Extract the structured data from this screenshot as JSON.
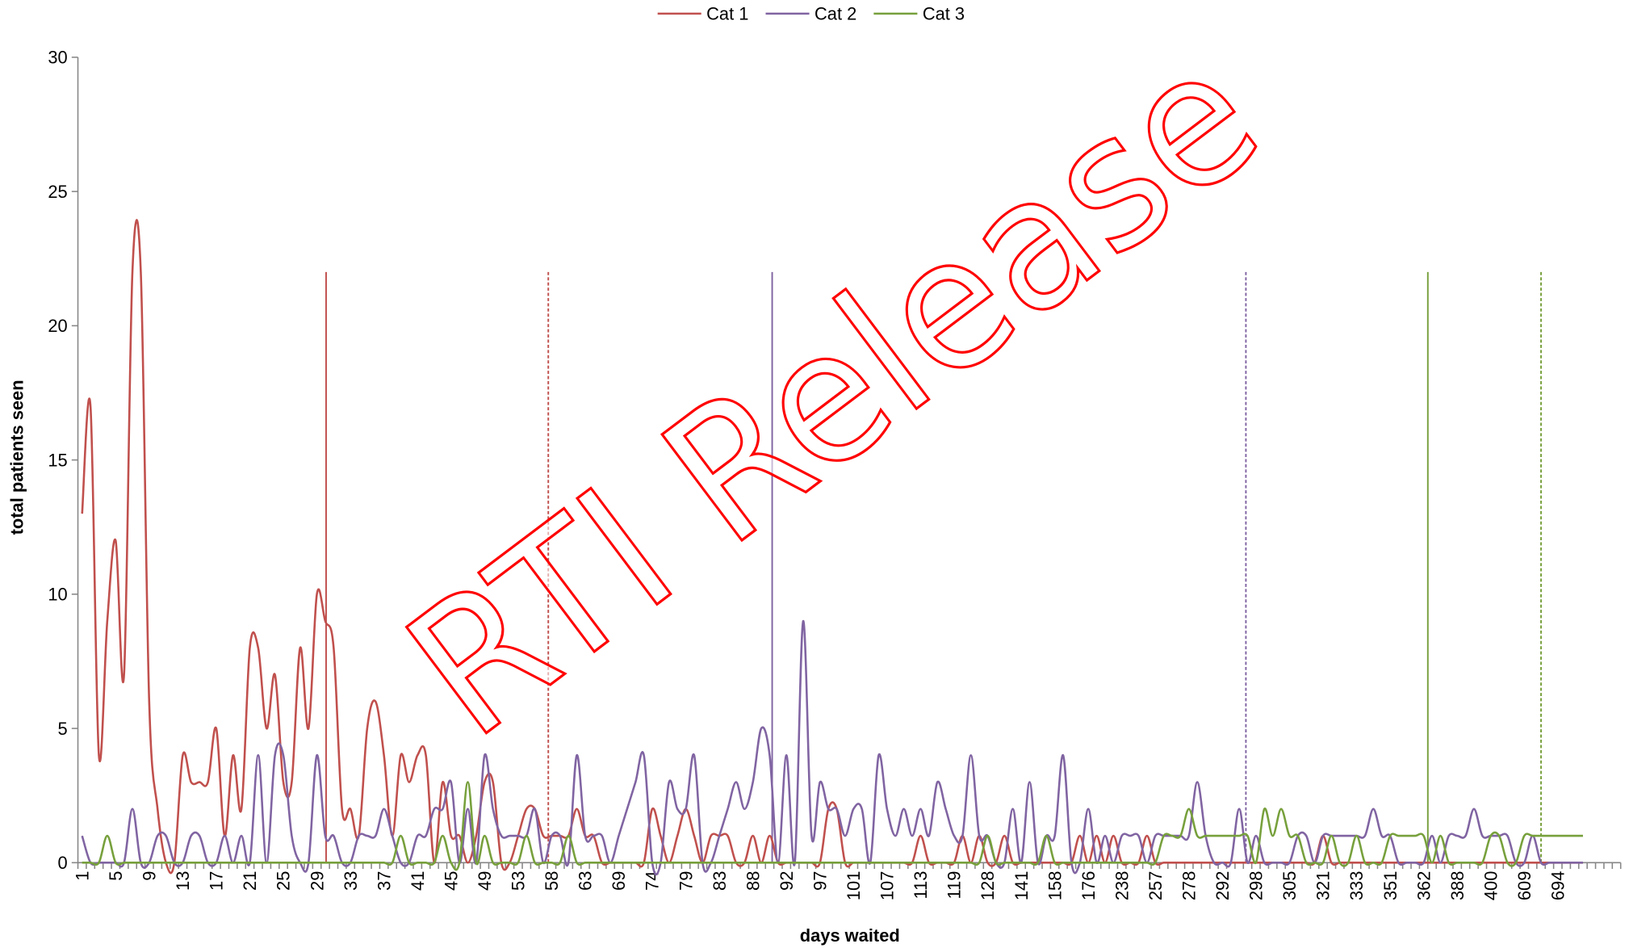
{
  "chart_data": {
    "type": "line",
    "watermark": "RTI Release",
    "x_label": "days waited",
    "y_label": "total patients seen",
    "legend": "top",
    "smooth": true,
    "ylim": [
      0,
      30
    ],
    "yticks": [
      0,
      5,
      10,
      15,
      20,
      25,
      30
    ],
    "categories": [
      "1",
      null,
      null,
      null,
      "5",
      null,
      null,
      null,
      "9",
      null,
      null,
      null,
      "13",
      null,
      null,
      null,
      "17",
      null,
      null,
      null,
      "21",
      null,
      null,
      null,
      "25",
      null,
      null,
      null,
      "29",
      null,
      null,
      null,
      "33",
      null,
      null,
      null,
      "37",
      null,
      null,
      null,
      "41",
      null,
      null,
      null,
      "45",
      null,
      null,
      null,
      "49",
      null,
      null,
      null,
      "53",
      null,
      null,
      null,
      "58",
      null,
      null,
      null,
      "63",
      null,
      null,
      null,
      "69",
      null,
      null,
      null,
      "74",
      null,
      null,
      null,
      "79",
      null,
      null,
      null,
      "83",
      null,
      null,
      null,
      "88",
      null,
      null,
      null,
      "92",
      null,
      null,
      null,
      "97",
      null,
      null,
      null,
      "101",
      null,
      null,
      null,
      "107",
      null,
      null,
      null,
      "113",
      null,
      null,
      null,
      "119",
      null,
      null,
      null,
      "128",
      null,
      null,
      null,
      "141",
      null,
      null,
      null,
      "158",
      null,
      null,
      null,
      "176",
      null,
      null,
      null,
      "238",
      null,
      null,
      null,
      "257",
      null,
      null,
      null,
      "278",
      null,
      null,
      null,
      "292",
      null,
      null,
      null,
      "298",
      null,
      null,
      null,
      "305",
      null,
      null,
      null,
      "321",
      null,
      null,
      null,
      "333",
      null,
      null,
      null,
      "351",
      null,
      null,
      null,
      "362",
      null,
      null,
      null,
      "388",
      null,
      null,
      null,
      "400",
      null,
      null,
      null,
      "609",
      null,
      null,
      null,
      "694",
      null,
      null,
      null,
      null,
      null,
      null,
      null
    ],
    "series": [
      {
        "name": "Cat 1",
        "color": "#c0504d",
        "values": [
          13,
          17,
          4,
          9,
          12,
          7,
          22,
          22,
          6,
          2,
          0,
          0,
          4,
          3,
          3,
          3,
          5,
          1,
          4,
          2,
          8,
          8,
          5,
          7,
          3,
          3,
          8,
          5,
          10,
          9,
          8,
          2,
          2,
          1,
          5,
          6,
          4,
          1,
          4,
          3,
          4,
          4,
          0,
          3,
          1,
          1,
          0,
          1,
          3,
          3,
          0,
          0,
          1,
          2,
          2,
          1,
          1,
          1,
          1,
          2,
          1,
          1,
          0,
          0,
          0,
          0,
          0,
          0,
          2,
          1,
          0,
          1,
          2,
          1,
          0,
          1,
          1,
          1,
          0,
          0,
          1,
          0,
          1,
          0,
          0,
          0,
          0,
          0,
          0,
          2,
          2,
          0,
          0,
          0,
          0,
          0,
          0,
          0,
          0,
          0,
          1,
          0,
          0,
          0,
          0,
          1,
          0,
          1,
          0,
          0,
          1,
          0,
          0,
          0,
          0,
          0,
          0,
          0,
          0,
          1,
          0,
          1,
          0,
          1,
          0,
          0,
          0,
          1,
          0,
          0,
          0,
          0,
          0,
          0,
          0,
          0,
          0,
          0,
          0,
          0,
          0,
          0,
          0,
          0,
          0,
          0,
          0,
          0,
          1,
          0,
          0,
          0,
          0,
          0,
          0,
          0,
          0,
          0,
          0,
          0,
          0,
          0,
          0,
          0,
          0,
          0,
          0,
          0,
          0,
          0,
          0,
          0,
          0,
          0,
          0,
          0,
          0,
          0,
          0,
          0,
          null,
          null,
          null,
          null
        ]
      },
      {
        "name": "Cat 2",
        "color": "#8064a2",
        "values": [
          1,
          0,
          0,
          0,
          0,
          0,
          2,
          0,
          0,
          1,
          1,
          0,
          0,
          1,
          1,
          0,
          0,
          1,
          0,
          1,
          0,
          4,
          0,
          4,
          4,
          1,
          0,
          0,
          4,
          1,
          1,
          0,
          0,
          1,
          1,
          1,
          2,
          1,
          0,
          0,
          1,
          1,
          2,
          2,
          3,
          0,
          2,
          0,
          4,
          2,
          1,
          1,
          1,
          1,
          2,
          0,
          1,
          1,
          0,
          4,
          1,
          1,
          1,
          0,
          1,
          2,
          3,
          4,
          0,
          0,
          3,
          2,
          2,
          4,
          0,
          0,
          1,
          2,
          3,
          2,
          3,
          5,
          4,
          0,
          4,
          0,
          9,
          1,
          3,
          2,
          2,
          1,
          2,
          2,
          0,
          4,
          2,
          1,
          2,
          1,
          2,
          1,
          3,
          2,
          1,
          1,
          4,
          1,
          1,
          0,
          0,
          2,
          0,
          3,
          0,
          1,
          1,
          4,
          0,
          0,
          2,
          0,
          1,
          0,
          1,
          1,
          1,
          0,
          1,
          1,
          1,
          1,
          1,
          3,
          1,
          0,
          0,
          0,
          2,
          0,
          1,
          0,
          0,
          0,
          0,
          1,
          1,
          0,
          1,
          1,
          1,
          1,
          1,
          1,
          2,
          1,
          1,
          0,
          0,
          0,
          0,
          1,
          0,
          1,
          1,
          1,
          2,
          1,
          1,
          1,
          1,
          0,
          0,
          1,
          0,
          0,
          0,
          0,
          0,
          0,
          null,
          null,
          null,
          null
        ]
      },
      {
        "name": "Cat 3",
        "color": "#77a03c",
        "values": [
          0,
          0,
          0,
          1,
          0,
          0,
          0,
          0,
          0,
          0,
          0,
          0,
          0,
          0,
          0,
          0,
          0,
          0,
          0,
          0,
          0,
          0,
          0,
          0,
          0,
          0,
          0,
          0,
          0,
          0,
          0,
          0,
          0,
          0,
          0,
          0,
          0,
          0,
          1,
          0,
          0,
          0,
          0,
          1,
          0,
          0,
          3,
          0,
          1,
          0,
          0,
          0,
          0,
          1,
          0,
          0,
          0,
          0,
          1,
          0,
          0,
          0,
          0,
          0,
          0,
          0,
          0,
          0,
          0,
          0,
          0,
          0,
          0,
          0,
          0,
          0,
          0,
          0,
          0,
          0,
          0,
          0,
          0,
          0,
          0,
          0,
          0,
          0,
          0,
          0,
          0,
          0,
          0,
          0,
          0,
          0,
          0,
          0,
          0,
          0,
          0,
          0,
          0,
          0,
          0,
          0,
          0,
          0,
          1,
          0,
          0,
          0,
          0,
          0,
          0,
          1,
          0,
          0,
          0,
          0,
          0,
          0,
          0,
          0,
          0,
          0,
          0,
          0,
          0,
          1,
          1,
          1,
          2,
          1,
          1,
          1,
          1,
          1,
          1,
          1,
          0,
          2,
          1,
          2,
          1,
          1,
          0,
          0,
          0,
          1,
          0,
          0,
          1,
          0,
          0,
          0,
          1,
          1,
          1,
          1,
          1,
          0,
          1,
          0,
          0,
          0,
          0,
          0,
          1,
          1,
          0,
          0,
          1,
          1,
          1,
          1,
          1,
          1,
          1,
          1,
          null,
          null,
          null,
          null
        ]
      }
    ],
    "reference_lines": [
      {
        "x": 29.1,
        "y": 22,
        "color": "#c0504d",
        "dashed": false
      },
      {
        "x": 55.6,
        "y": 22,
        "color": "#c0504d",
        "dashed": true
      },
      {
        "x": 82.3,
        "y": 22,
        "color": "#8064a2",
        "dashed": false
      },
      {
        "x": 138.8,
        "y": 22,
        "color": "#8064a2",
        "dashed": true
      },
      {
        "x": 160.5,
        "y": 22,
        "color": "#77a03c",
        "dashed": false
      },
      {
        "x": 174,
        "y": 22,
        "color": "#77a03c",
        "dashed": true
      }
    ]
  }
}
